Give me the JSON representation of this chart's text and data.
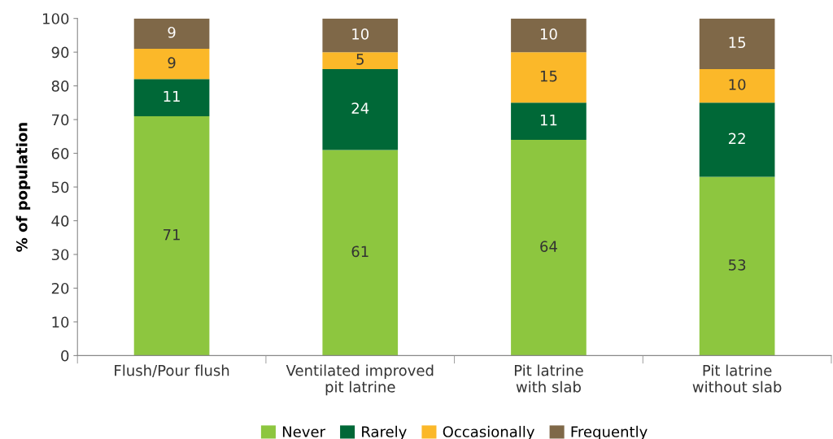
{
  "chart_data": {
    "type": "bar",
    "stacked": true,
    "ylabel": "% of population",
    "categories": [
      "Flush/Pour flush",
      "Ventilated improved\npit latrine",
      "Pit latrine\nwith slab",
      "Pit latrine\nwithout slab"
    ],
    "series": [
      {
        "name": "Never",
        "color": "#8dc63f",
        "values": [
          71,
          61,
          64,
          53
        ]
      },
      {
        "name": "Rarely",
        "color": "#006837",
        "values": [
          11,
          24,
          11,
          22
        ]
      },
      {
        "name": "Occasionally",
        "color": "#fbb829",
        "values": [
          9,
          5,
          15,
          10
        ]
      },
      {
        "name": "Frequently",
        "color": "#7f6848",
        "values": [
          9,
          10,
          10,
          15
        ]
      }
    ],
    "ylim": [
      0,
      100
    ],
    "yticks": [
      0,
      10,
      20,
      30,
      40,
      50,
      60,
      70,
      80,
      90,
      100
    ],
    "data_labels": true,
    "grid": false,
    "legend": "bottom"
  }
}
